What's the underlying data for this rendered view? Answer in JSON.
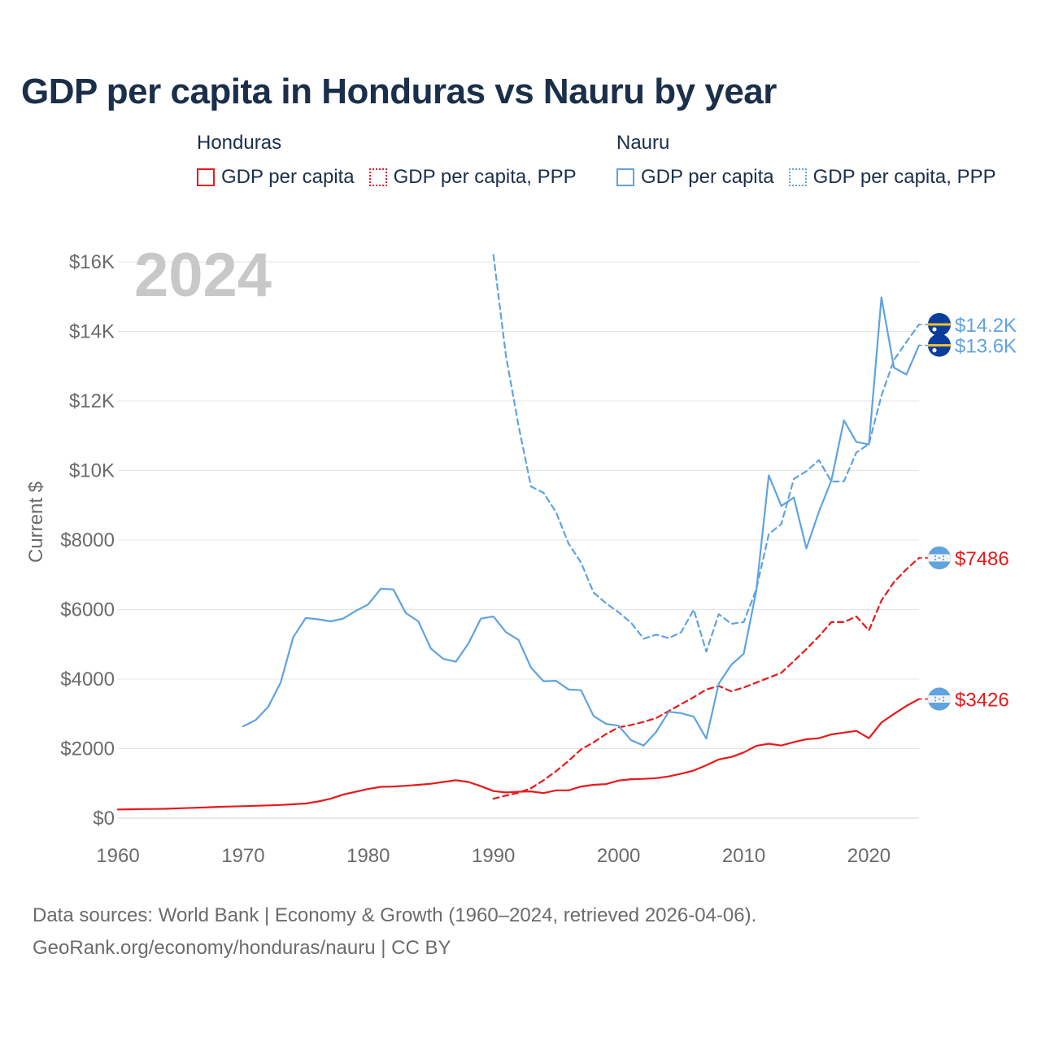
{
  "title": "GDP per capita in Honduras vs Nauru by year",
  "legend": {
    "groups": [
      {
        "name": "Honduras",
        "items": [
          {
            "label": "GDP per capita",
            "style": "solid",
            "color": "#e8191b"
          },
          {
            "label": "GDP per capita, PPP",
            "style": "dotted",
            "color": "#e8191b"
          }
        ]
      },
      {
        "name": "Nauru",
        "items": [
          {
            "label": "GDP per capita",
            "style": "solid",
            "color": "#5fa3e0"
          },
          {
            "label": "GDP per capita, PPP",
            "style": "dotted",
            "color": "#5fa3e0"
          }
        ]
      }
    ]
  },
  "year_label": "2024",
  "footer": {
    "line1": "Data sources: World Bank | Economy & Growth (1960–2024, retrieved 2026-04-06).",
    "line2": "GeoRank.org/economy/honduras/nauru | CC BY"
  },
  "chart_data": {
    "type": "line",
    "ylabel": "Current $",
    "xlim": [
      1960,
      2024
    ],
    "ylim": [
      0,
      16000
    ],
    "x_ticks": [
      {
        "value": 1960,
        "label": "1960"
      },
      {
        "value": 1970,
        "label": "1970"
      },
      {
        "value": 1980,
        "label": "1980"
      },
      {
        "value": 1990,
        "label": "1990"
      },
      {
        "value": 2000,
        "label": "2000"
      },
      {
        "value": 2010,
        "label": "2010"
      },
      {
        "value": 2020,
        "label": "2020"
      }
    ],
    "y_ticks": [
      {
        "value": 0,
        "label": "$0"
      },
      {
        "value": 2000,
        "label": "$2000"
      },
      {
        "value": 4000,
        "label": "$4000"
      },
      {
        "value": 6000,
        "label": "$6000"
      },
      {
        "value": 8000,
        "label": "$8000"
      },
      {
        "value": 10000,
        "label": "$10K"
      },
      {
        "value": 12000,
        "label": "$12K"
      },
      {
        "value": 14000,
        "label": "$14K"
      },
      {
        "value": 16000,
        "label": "$16K"
      }
    ],
    "series": [
      {
        "name": "Honduras GDP per capita",
        "country": "Honduras",
        "color": "#e8191b",
        "dash": false,
        "end_label": "$3426",
        "flag": "honduras",
        "x": [
          1960,
          1961,
          1962,
          1963,
          1964,
          1965,
          1966,
          1967,
          1968,
          1969,
          1970,
          1971,
          1972,
          1973,
          1974,
          1975,
          1976,
          1977,
          1978,
          1979,
          1980,
          1981,
          1982,
          1983,
          1984,
          1985,
          1986,
          1987,
          1988,
          1989,
          1990,
          1991,
          1992,
          1993,
          1994,
          1995,
          1996,
          1997,
          1998,
          1999,
          2000,
          2001,
          2002,
          2003,
          2004,
          2005,
          2006,
          2007,
          2008,
          2009,
          2010,
          2011,
          2012,
          2013,
          2014,
          2015,
          2016,
          2017,
          2018,
          2019,
          2020,
          2021,
          2022,
          2023,
          2024
        ],
        "values": [
          250,
          255,
          262,
          265,
          272,
          285,
          298,
          308,
          325,
          335,
          345,
          355,
          368,
          380,
          400,
          420,
          480,
          560,
          680,
          760,
          840,
          900,
          910,
          930,
          960,
          990,
          1040,
          1090,
          1040,
          920,
          780,
          740,
          760,
          770,
          720,
          800,
          800,
          910,
          960,
          980,
          1080,
          1120,
          1130,
          1150,
          1200,
          1280,
          1370,
          1520,
          1690,
          1760,
          1890,
          2080,
          2140,
          2090,
          2190,
          2270,
          2300,
          2410,
          2460,
          2510,
          2300,
          2750,
          3000,
          3230,
          3426
        ]
      },
      {
        "name": "Honduras GDP per capita, PPP",
        "country": "Honduras",
        "color": "#e8191b",
        "dash": true,
        "end_label": "$7486",
        "flag": "honduras",
        "x": [
          1990,
          1991,
          1992,
          1993,
          1994,
          1995,
          1996,
          1997,
          1998,
          1999,
          2000,
          2001,
          2002,
          2003,
          2004,
          2005,
          2006,
          2007,
          2008,
          2009,
          2010,
          2011,
          2012,
          2013,
          2014,
          2015,
          2016,
          2017,
          2018,
          2019,
          2020,
          2021,
          2022,
          2023,
          2024
        ],
        "values": [
          560,
          650,
          730,
          860,
          1090,
          1350,
          1650,
          1980,
          2180,
          2420,
          2610,
          2680,
          2770,
          2880,
          3080,
          3280,
          3480,
          3700,
          3800,
          3650,
          3760,
          3900,
          4040,
          4180,
          4520,
          4860,
          5230,
          5640,
          5640,
          5800,
          5400,
          6260,
          6790,
          7160,
          7486
        ]
      },
      {
        "name": "Nauru GDP per capita",
        "country": "Nauru",
        "color": "#5fa3e0",
        "dash": false,
        "end_label": "$13.6K",
        "flag": "nauru",
        "x": [
          1970,
          1971,
          1972,
          1973,
          1974,
          1975,
          1976,
          1977,
          1978,
          1979,
          1980,
          1981,
          1982,
          1983,
          1984,
          1985,
          1986,
          1987,
          1988,
          1989,
          1990,
          1991,
          1992,
          1993,
          1994,
          1995,
          1996,
          1997,
          1998,
          1999,
          2000,
          2001,
          2002,
          2003,
          2004,
          2005,
          2006,
          2007,
          2008,
          2009,
          2010,
          2011,
          2012,
          2013,
          2014,
          2015,
          2016,
          2017,
          2018,
          2019,
          2020,
          2021,
          2022,
          2023,
          2024
        ],
        "values": [
          2640,
          2820,
          3200,
          3900,
          5200,
          5760,
          5720,
          5660,
          5740,
          5960,
          6150,
          6600,
          6580,
          5900,
          5660,
          4880,
          4580,
          4500,
          5020,
          5740,
          5800,
          5350,
          5130,
          4330,
          3940,
          3950,
          3700,
          3680,
          2940,
          2710,
          2660,
          2240,
          2090,
          2480,
          3060,
          3020,
          2920,
          2290,
          3870,
          4410,
          4730,
          6540,
          9860,
          8980,
          9220,
          7760,
          8810,
          9720,
          11440,
          10820,
          10750,
          14980,
          12960,
          12760,
          13600
        ]
      },
      {
        "name": "Nauru GDP per capita, PPP",
        "country": "Nauru",
        "color": "#5fa3e0",
        "dash": true,
        "end_label": "$14.2K",
        "flag": "nauru",
        "x": [
          1990,
          1991,
          1992,
          1993,
          1994,
          1995,
          1996,
          1997,
          1998,
          1999,
          2000,
          2001,
          2002,
          2003,
          2004,
          2005,
          2006,
          2007,
          2008,
          2009,
          2010,
          2011,
          2012,
          2013,
          2014,
          2015,
          2016,
          2017,
          2018,
          2019,
          2020,
          2021,
          2022,
          2023,
          2024
        ],
        "values": [
          16200,
          13300,
          11300,
          9540,
          9360,
          8800,
          7900,
          7350,
          6490,
          6180,
          5920,
          5620,
          5160,
          5280,
          5180,
          5350,
          6000,
          4790,
          5870,
          5590,
          5640,
          6580,
          8170,
          8460,
          9760,
          9980,
          10300,
          9680,
          9690,
          10520,
          10760,
          12150,
          13180,
          13700,
          14200
        ]
      }
    ]
  }
}
